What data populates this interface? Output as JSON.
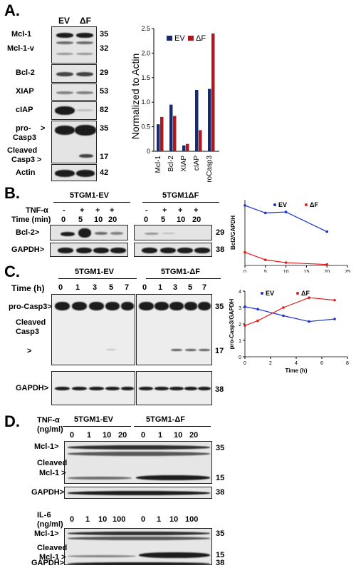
{
  "panelA": {
    "label": "A.",
    "lanes": [
      "EV",
      "ΔF"
    ],
    "rows": [
      {
        "name": "Mcl-1",
        "mw": "35"
      },
      {
        "name": "Mcl-1-v",
        "mw": "32"
      },
      {
        "name": "Bcl-2",
        "mw": "29"
      },
      {
        "name": "XIAP",
        "mw": "53"
      },
      {
        "name": "cIAP",
        "mw": "82"
      },
      {
        "name": "pro-",
        "mw": "35"
      },
      {
        "name": "Casp3"
      },
      {
        "name": "Cleaved",
        "mw": "17"
      },
      {
        "name": "Casp3"
      },
      {
        "name": "Actin",
        "mw": "42"
      }
    ],
    "markers": {
      "gt": ">"
    }
  },
  "chart_data": [
    {
      "type": "bar",
      "categories": [
        "Mcl-1",
        "Bcl-2",
        "XIAP",
        "cIAP",
        "proCasp3"
      ],
      "series": [
        {
          "name": "EV",
          "values": [
            0.55,
            0.95,
            0.12,
            1.25,
            1.27
          ],
          "color": "#1b2a6b"
        },
        {
          "name": "ΔF",
          "values": [
            0.7,
            0.72,
            0.15,
            0.43,
            2.4
          ],
          "color": "#b0181f"
        }
      ],
      "ylabel": "Normalized to Actin",
      "ylim": [
        0,
        2.5
      ],
      "yticks": [
        "0",
        "0.5",
        "1.0",
        "1.5",
        "2.0",
        "2.5"
      ],
      "legend": "top-left"
    },
    {
      "type": "line",
      "x": [
        0,
        5,
        10,
        20
      ],
      "series": [
        {
          "name": "EV",
          "values": [
            0.32,
            0.28,
            0.285,
            0.18
          ],
          "color": "#1a2fd4"
        },
        {
          "name": "ΔF",
          "values": [
            0.07,
            0.03,
            0.015,
            0.005
          ],
          "color": "#e31a1a"
        }
      ],
      "ylabel": "Bcl2/GAPDH",
      "xlim": [
        0,
        25
      ],
      "ylim": [
        0,
        0.35
      ],
      "xticks": [
        "0",
        "5",
        "10",
        "15",
        "20",
        "25"
      ],
      "legend": "top-right"
    },
    {
      "type": "line",
      "x": [
        0,
        1,
        3,
        5,
        7
      ],
      "series": [
        {
          "name": "EV",
          "values": [
            3.05,
            2.9,
            2.5,
            2.15,
            2.3
          ],
          "color": "#1a2fd4"
        },
        {
          "name": "ΔF",
          "values": [
            1.9,
            2.2,
            3.0,
            3.6,
            3.45
          ],
          "color": "#e31a1a"
        }
      ],
      "ylabel": "pro-Casp3/GAPDH",
      "xlabel": "Time (h)",
      "xlim": [
        0,
        8
      ],
      "ylim": [
        0,
        4
      ],
      "xticks": [
        "0",
        "2",
        "4",
        "6",
        "8"
      ],
      "yticks": [
        "0",
        "1",
        "2",
        "3",
        "4"
      ],
      "legend": "top"
    }
  ],
  "panelB": {
    "label": "B.",
    "groups": [
      "5TGM1-EV",
      "5TGM1ΔF"
    ],
    "tnf": "TNF-α",
    "time_label": "Time (min)",
    "signs": [
      "-",
      "+",
      "+",
      "+"
    ],
    "times": [
      "0",
      "5",
      "10",
      "20"
    ],
    "bcl2": "Bcl-2>",
    "gapdh": "GAPDH>",
    "mw": [
      "29",
      "38"
    ]
  },
  "panelC": {
    "label": "C.",
    "groups": [
      "5TGM1-EV",
      "5TGM1-ΔF"
    ],
    "time_label": "Time (h)",
    "times": [
      "0",
      "1",
      "3",
      "5",
      "7"
    ],
    "procasp": "pro-Casp3>",
    "cleaved1": "Cleaved",
    "cleaved2": "Casp3",
    "gt": ">",
    "gapdh": "GAPDH>",
    "mw": [
      "35",
      "17",
      "38"
    ]
  },
  "panelD": {
    "label": "D.",
    "groups": [
      "5TGM1-EV",
      "5TGM1-ΔF"
    ],
    "tnf1": "TNF-α",
    "tnf2": "(ng/ml)",
    "tnf_doses": [
      "0",
      "1",
      "10",
      "20"
    ],
    "il1": "IL-6",
    "il2": "(ng/ml)",
    "il_doses": [
      "0",
      "1",
      "10",
      "100"
    ],
    "mcl": "Mcl-1>",
    "cleaved1": "Cleaved",
    "cleaved2": "Mcl-1",
    "gt": ">",
    "gapdh": "GAPDH>",
    "mw": [
      "35",
      "15",
      "38"
    ]
  }
}
